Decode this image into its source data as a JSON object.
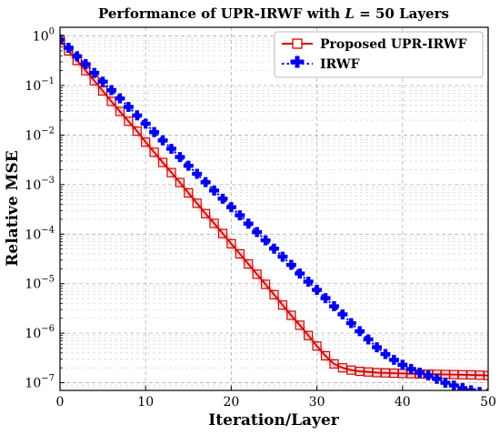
{
  "chart_data": {
    "type": "line",
    "title_prefix": "Performance of UPR-IRWF with ",
    "title_math": "L",
    "title_eq": " = 50",
    "title_suffix": " Layers",
    "xlabel": "Iteration/Layer",
    "ylabel": "Relative MSE",
    "xlim": [
      0,
      50
    ],
    "ylim": [
      7e-08,
      1.5
    ],
    "yscale": "log",
    "grid": true,
    "legend_position": "top-right",
    "x_ticks": [
      "0",
      "10",
      "20",
      "30",
      "40",
      "50"
    ],
    "y_ticks": [
      {
        "base": "10",
        "exp": "0"
      },
      {
        "base": "10",
        "exp": "−1"
      },
      {
        "base": "10",
        "exp": "−2"
      },
      {
        "base": "10",
        "exp": "−3"
      },
      {
        "base": "10",
        "exp": "−4"
      },
      {
        "base": "10",
        "exp": "−5"
      },
      {
        "base": "10",
        "exp": "−6"
      },
      {
        "base": "10",
        "exp": "−7"
      }
    ],
    "x": [
      0,
      1,
      2,
      3,
      4,
      5,
      6,
      7,
      8,
      9,
      10,
      11,
      12,
      13,
      14,
      15,
      16,
      17,
      18,
      19,
      20,
      21,
      22,
      23,
      24,
      25,
      26,
      27,
      28,
      29,
      30,
      31,
      32,
      33,
      34,
      35,
      36,
      37,
      38,
      39,
      40,
      41,
      42,
      43,
      44,
      45,
      46,
      47,
      48,
      49,
      50
    ],
    "series": [
      {
        "name": "Proposed UPR-IRWF",
        "color": "#cc0000",
        "marker": "square-open",
        "values": [
          0.85,
          0.5,
          0.32,
          0.2,
          0.125,
          0.078,
          0.048,
          0.03,
          0.019,
          0.012,
          0.0072,
          0.0045,
          0.0028,
          0.00175,
          0.0011,
          0.00068,
          0.00042,
          0.00026,
          0.000165,
          0.000103,
          6.4e-05,
          4e-05,
          2.5e-05,
          1.55e-05,
          9.7e-06,
          6e-06,
          3.7e-06,
          2.3e-06,
          1.45e-06,
          9e-07,
          5.5e-07,
          3.5e-07,
          2.4e-07,
          2e-07,
          1.8e-07,
          1.7e-07,
          1.65e-07,
          1.6e-07,
          1.58e-07,
          1.56e-07,
          1.54e-07,
          1.52e-07,
          1.5e-07,
          1.49e-07,
          1.48e-07,
          1.47e-07,
          1.46e-07,
          1.45e-07,
          1.44e-07,
          1.42e-07,
          1.4e-07
        ]
      },
      {
        "name": "IRWF",
        "color": "#0000ee",
        "marker": "plus",
        "values": [
          0.85,
          0.58,
          0.39,
          0.27,
          0.18,
          0.12,
          0.081,
          0.055,
          0.037,
          0.025,
          0.017,
          0.0115,
          0.0078,
          0.0053,
          0.0036,
          0.0024,
          0.00165,
          0.00112,
          0.00076,
          0.00052,
          0.00035,
          0.00024,
          0.000163,
          0.00011,
          7.5e-05,
          5.1e-05,
          3.5e-05,
          2.4e-05,
          1.6e-05,
          1.1e-05,
          7.5e-06,
          5.1e-06,
          3.5e-06,
          2.4e-06,
          1.6e-06,
          1.1e-06,
          7.5e-07,
          5.2e-07,
          3.8e-07,
          2.9e-07,
          2.3e-07,
          1.9e-07,
          1.6e-07,
          1.4e-07,
          1.2e-07,
          1e-07,
          8.8e-08,
          7.8e-08,
          7e-08,
          6.5e-08,
          6e-08
        ]
      }
    ]
  }
}
